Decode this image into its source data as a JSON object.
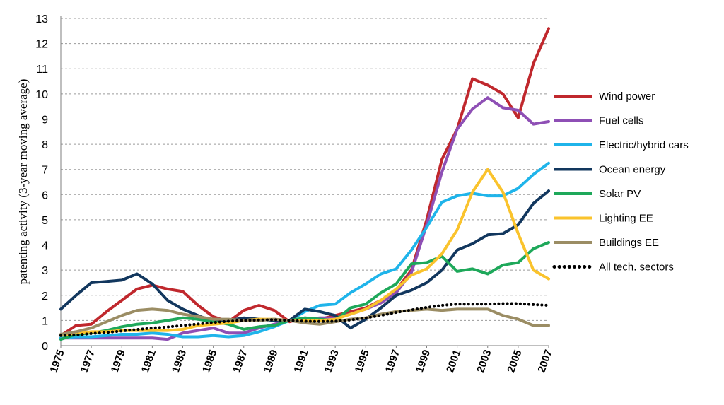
{
  "chart_data": {
    "type": "line",
    "title": "",
    "xlabel": "",
    "ylabel": "patenting activity (3-year moving average)",
    "ylim": [
      0,
      13
    ],
    "yticks": [
      0,
      1,
      2,
      3,
      4,
      5,
      6,
      7,
      8,
      9,
      10,
      11,
      12,
      13
    ],
    "xtick_labels": [
      "1975",
      "1977",
      "1979",
      "1981",
      "1983",
      "1985",
      "1987",
      "1989",
      "1991",
      "1993",
      "1995",
      "1997",
      "1999",
      "2001",
      "2003",
      "2005",
      "2007"
    ],
    "x": [
      1975,
      1976,
      1977,
      1978,
      1979,
      1980,
      1981,
      1982,
      1983,
      1984,
      1985,
      1986,
      1987,
      1988,
      1989,
      1990,
      1991,
      1992,
      1993,
      1994,
      1995,
      1996,
      1997,
      1998,
      1999,
      2000,
      2001,
      2002,
      2003,
      2004,
      2005,
      2006,
      2007
    ],
    "grid": "horizontal dashed",
    "legend_position": "right",
    "series": [
      {
        "name": "Wind power",
        "color": "#c0282d",
        "style": "solid",
        "values": [
          0.4,
          0.8,
          0.85,
          1.35,
          1.8,
          2.25,
          2.4,
          2.25,
          2.15,
          1.6,
          1.15,
          0.95,
          1.4,
          1.6,
          1.4,
          0.95,
          1.1,
          1.05,
          1.2,
          1.35,
          1.5,
          1.8,
          2.2,
          3.0,
          5.0,
          7.4,
          8.6,
          10.6,
          10.35,
          10.0,
          9.05,
          11.2,
          12.6
        ]
      },
      {
        "name": "Fuel cells",
        "color": "#8e4fb5",
        "style": "solid",
        "values": [
          0.3,
          0.3,
          0.3,
          0.3,
          0.3,
          0.3,
          0.3,
          0.25,
          0.5,
          0.6,
          0.7,
          0.5,
          0.5,
          0.7,
          0.85,
          1.0,
          1.05,
          1.1,
          1.1,
          1.25,
          1.45,
          1.7,
          2.1,
          2.9,
          4.8,
          6.9,
          8.6,
          9.4,
          9.85,
          9.45,
          9.35,
          8.8,
          8.9
        ]
      },
      {
        "name": "Electric/hybrid cars",
        "color": "#1fb4ea",
        "style": "solid",
        "values": [
          0.3,
          0.35,
          0.35,
          0.4,
          0.45,
          0.45,
          0.5,
          0.45,
          0.35,
          0.35,
          0.4,
          0.35,
          0.4,
          0.55,
          0.75,
          1.0,
          1.35,
          1.6,
          1.65,
          2.1,
          2.45,
          2.85,
          3.05,
          3.8,
          4.7,
          5.7,
          5.95,
          6.05,
          5.95,
          5.95,
          6.25,
          6.8,
          7.25
        ]
      },
      {
        "name": "Ocean energy",
        "color": "#12375e",
        "style": "solid",
        "values": [
          1.45,
          2.0,
          2.5,
          2.55,
          2.6,
          2.85,
          2.45,
          1.8,
          1.45,
          1.2,
          0.95,
          1.0,
          1.1,
          1.05,
          1.0,
          1.0,
          1.45,
          1.35,
          1.2,
          0.7,
          1.05,
          1.5,
          2.0,
          2.2,
          2.5,
          3.0,
          3.8,
          4.05,
          4.4,
          4.45,
          4.8,
          5.65,
          6.15
        ]
      },
      {
        "name": "Solar PV",
        "color": "#1ea85a",
        "style": "solid",
        "values": [
          0.25,
          0.45,
          0.5,
          0.6,
          0.75,
          0.85,
          0.9,
          1.0,
          1.1,
          1.05,
          0.95,
          0.85,
          0.65,
          0.75,
          0.8,
          1.0,
          1.1,
          1.05,
          1.0,
          1.5,
          1.65,
          2.1,
          2.45,
          3.25,
          3.3,
          3.55,
          2.95,
          3.05,
          2.85,
          3.2,
          3.3,
          3.85,
          4.1
        ]
      },
      {
        "name": "Lighting EE",
        "color": "#fac32c",
        "style": "solid",
        "values": [
          0.4,
          0.5,
          0.55,
          0.55,
          0.6,
          0.6,
          0.6,
          0.6,
          0.65,
          0.8,
          0.85,
          0.9,
          1.0,
          1.05,
          1.05,
          1.0,
          1.0,
          1.0,
          1.05,
          1.25,
          1.45,
          1.8,
          2.25,
          2.8,
          3.05,
          3.65,
          4.6,
          6.1,
          7.0,
          6.1,
          4.45,
          3.0,
          2.65
        ]
      },
      {
        "name": "Buildings EE",
        "color": "#9b8d64",
        "style": "solid",
        "values": [
          0.45,
          0.55,
          0.7,
          0.95,
          1.2,
          1.4,
          1.45,
          1.4,
          1.25,
          1.15,
          1.05,
          1.05,
          1.0,
          1.0,
          1.05,
          1.0,
          0.9,
          0.85,
          0.95,
          1.05,
          1.1,
          1.25,
          1.35,
          1.4,
          1.45,
          1.4,
          1.45,
          1.45,
          1.45,
          1.2,
          1.05,
          0.8,
          0.8
        ]
      },
      {
        "name": "All tech. sectors",
        "color": "#000000",
        "style": "dotted",
        "values": [
          0.4,
          0.42,
          0.48,
          0.52,
          0.58,
          0.64,
          0.7,
          0.74,
          0.8,
          0.86,
          0.92,
          0.97,
          1.0,
          1.02,
          1.03,
          1.0,
          0.97,
          0.96,
          0.97,
          1.02,
          1.1,
          1.2,
          1.32,
          1.42,
          1.52,
          1.6,
          1.65,
          1.65,
          1.65,
          1.67,
          1.67,
          1.63,
          1.6
        ]
      }
    ]
  }
}
